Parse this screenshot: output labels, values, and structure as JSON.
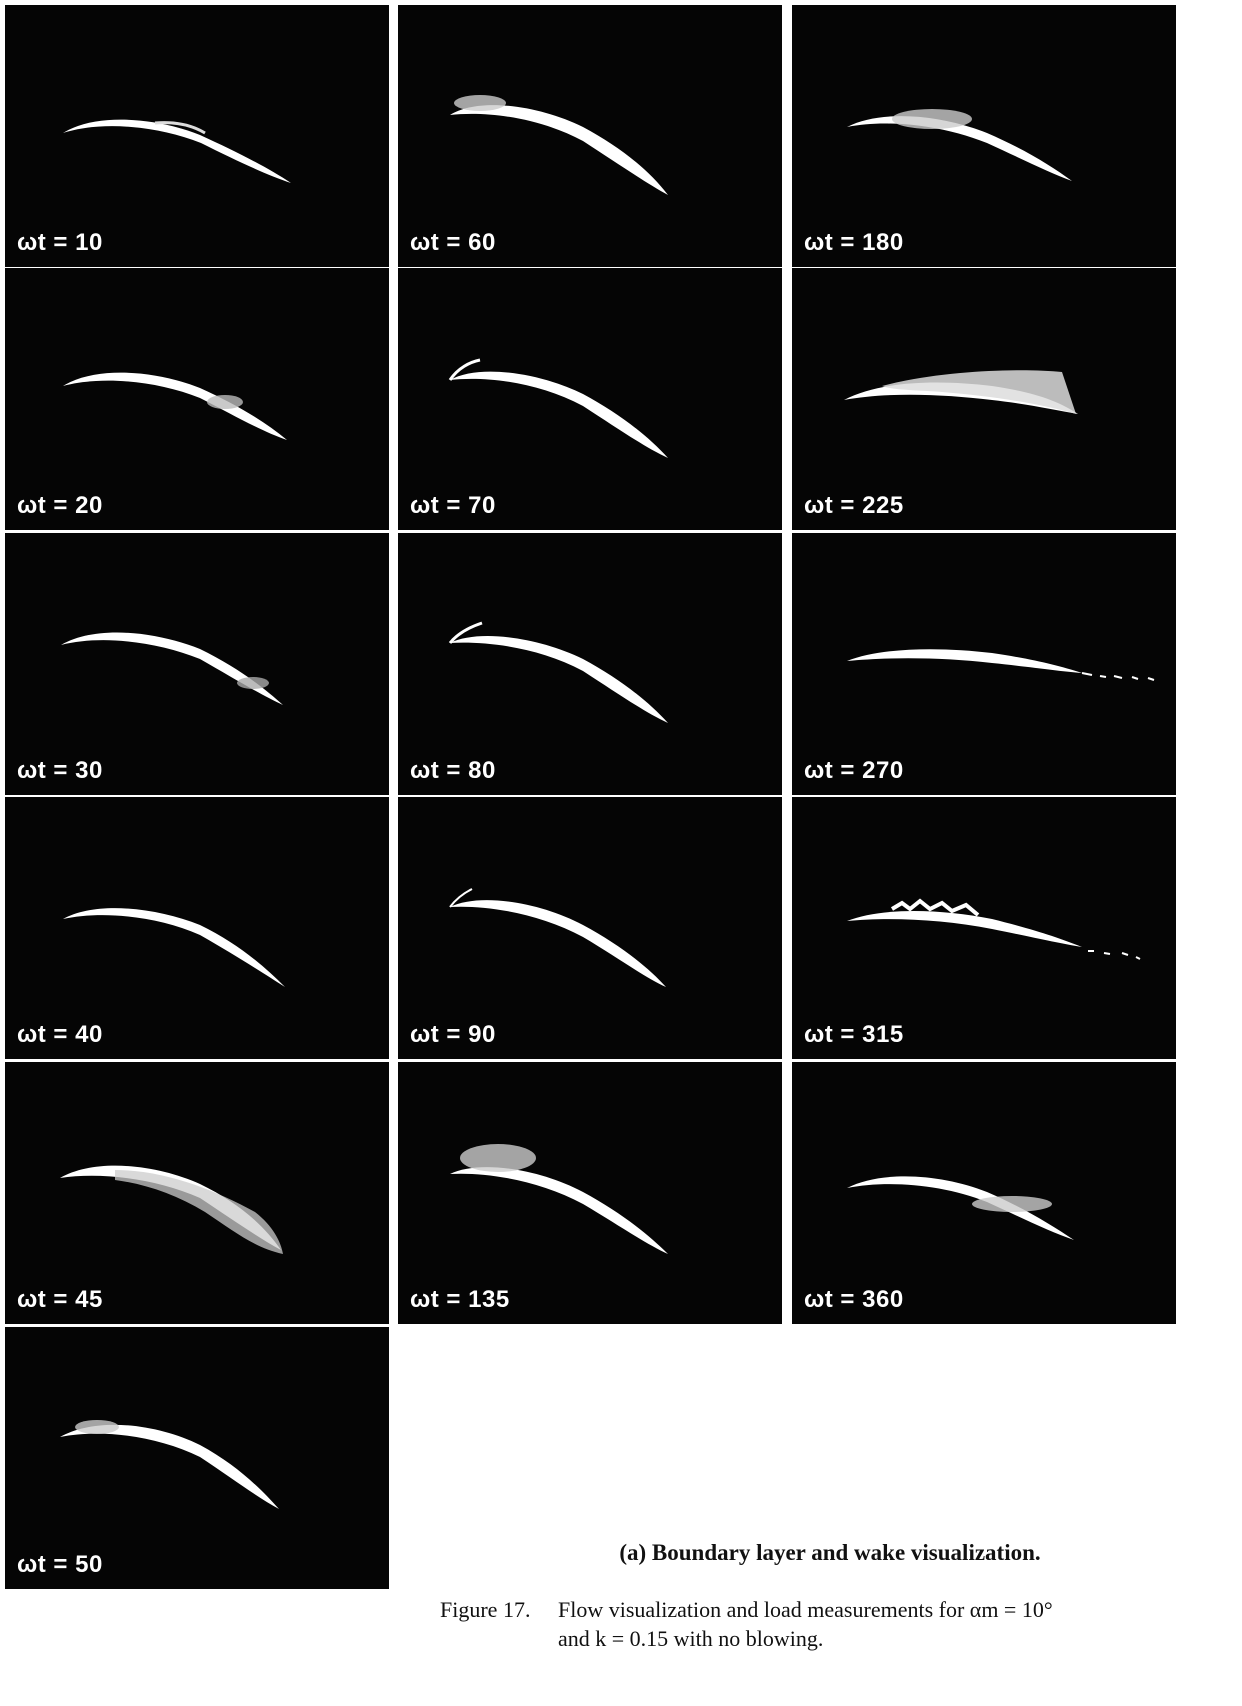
{
  "figure": {
    "colors": {
      "panel_background": "#050505",
      "airfoil": "#ffffff",
      "page": "#ffffff"
    },
    "panels": [
      {
        "label": "ωt = 10",
        "omega_t": 10,
        "flow": "attached"
      },
      {
        "label": "ωt = 20",
        "omega_t": 20,
        "flow": "attached, trailing-edge smoke"
      },
      {
        "label": "ωt = 30",
        "omega_t": 30,
        "flow": "attached"
      },
      {
        "label": "ωt = 40",
        "omega_t": 40,
        "flow": "attached"
      },
      {
        "label": "ωt = 45",
        "omega_t": 45,
        "flow": "trailing-edge separation"
      },
      {
        "label": "ωt = 50",
        "omega_t": 50,
        "flow": "light leading-edge smoke"
      },
      {
        "label": "ωt = 60",
        "omega_t": 60,
        "flow": "leading-edge smoke"
      },
      {
        "label": "ωt = 70",
        "omega_t": 70,
        "flow": "leading-edge lift"
      },
      {
        "label": "ωt = 80",
        "omega_t": 80,
        "flow": "leading-edge lift"
      },
      {
        "label": "ωt = 90",
        "omega_t": 90,
        "flow": "leading-edge lift"
      },
      {
        "label": "ωt = 135",
        "omega_t": 135,
        "flow": "leading-edge vortex"
      },
      {
        "label": "ωt = 180",
        "omega_t": 180,
        "flow": "upper-surface separation"
      },
      {
        "label": "ωt = 225",
        "omega_t": 225,
        "flow": "full separation"
      },
      {
        "label": "ωt = 270",
        "omega_t": 270,
        "flow": "wake shedding"
      },
      {
        "label": "ωt = 315",
        "omega_t": 315,
        "flow": "reattaching with wake"
      },
      {
        "label": "ωt = 360",
        "omega_t": 360,
        "flow": "trailing-edge smoke"
      }
    ],
    "subcaption": "(a) Boundary layer and wake visualization.",
    "caption": {
      "number": "Figure 17.",
      "line1": "Flow visualization and load measurements for αm = 10°",
      "line2": "and k = 0.15 with no blowing."
    }
  }
}
